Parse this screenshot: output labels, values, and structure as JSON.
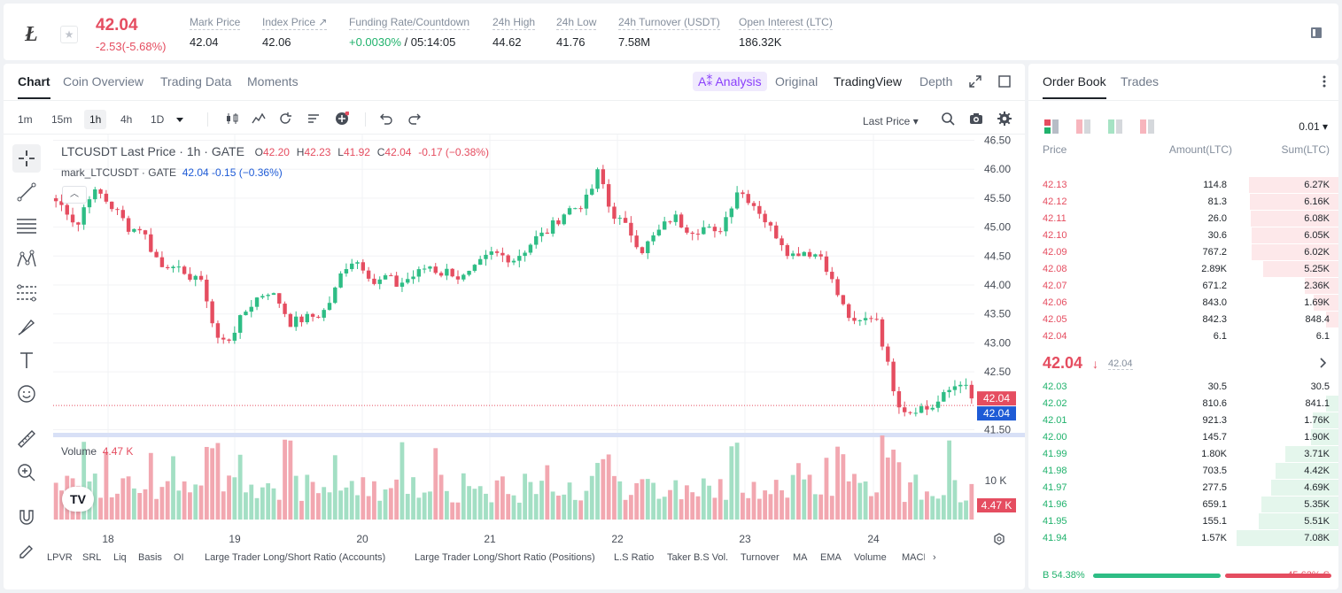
{
  "ticker": {
    "last_price": "42.04",
    "change": "-2.53(-5.68%)",
    "stats": [
      {
        "label": "Mark Price",
        "value": "42.04"
      },
      {
        "label": "Index Price ↗",
        "value": "42.06"
      },
      {
        "label": "Funding Rate/Countdown",
        "value_green": "+0.0030%",
        "value_rest": " / 05:14:05"
      },
      {
        "label": "24h High",
        "value": "44.62"
      },
      {
        "label": "24h Low",
        "value": "41.76"
      },
      {
        "label": "24h Turnover (USDT)",
        "value": "7.58M"
      },
      {
        "label": "Open Interest (LTC)",
        "value": "186.32K"
      }
    ]
  },
  "chart_tabs": [
    "Chart",
    "Coin Overview",
    "Trading Data",
    "Moments"
  ],
  "view_tabs": {
    "analysis": "A⁑ Analysis",
    "original": "Original",
    "tradingview": "TradingView",
    "depth": "Depth"
  },
  "timeframes": [
    "1m",
    "15m",
    "1h",
    "4h",
    "1D"
  ],
  "price_type": "Last Price ▾",
  "legend": {
    "symbol": "LTCUSDT Last Price · 1h · GATE",
    "o_label": "O",
    "o": "42.20",
    "h_label": "H",
    "h": "42.23",
    "l_label": "L",
    "l": "41.92",
    "c_label": "C",
    "c": "42.04",
    "chg": "-0.17 (−0.38%)",
    "mark": "mark_LTCUSDT · GATE",
    "mark_val": "42.04 -0.15 (−0.36%)"
  },
  "volume_legend": {
    "label": "Volume",
    "value": "4.47 K"
  },
  "bottom_indicators": [
    "LPVR",
    "SRL",
    "Liq",
    "Basis",
    "OI",
    "Large Trader Long/Short Ratio (Accounts)",
    "Large Trader Long/Short Ratio (Positions)",
    "L.S Ratio",
    "Taker B.S Vol.",
    "Turnover",
    "MA",
    "EMA",
    "Volume",
    "MACD"
  ],
  "chart_data": {
    "type": "candlestick",
    "price_ticks": [
      "46.50",
      "46.00",
      "45.50",
      "45.00",
      "44.50",
      "44.00",
      "43.50",
      "43.00",
      "42.50",
      "41.50"
    ],
    "price_range": [
      41.4,
      46.6
    ],
    "x_labels": [
      "18",
      "19",
      "20",
      "21",
      "22",
      "23",
      "24"
    ],
    "current_price_label": "42.04",
    "mark_price_label": "42.04",
    "volume_tick": "10 K",
    "volume_label": "4.47 K",
    "close_path": [
      45.45,
      45.3,
      45.0,
      45.55,
      45.6,
      45.4,
      45.2,
      44.95,
      45.0,
      44.6,
      44.3,
      44.4,
      44.1,
      44.2,
      43.9,
      43.1,
      43.0,
      43.3,
      43.6,
      43.8,
      43.9,
      43.7,
      43.35,
      43.4,
      43.45,
      43.5,
      43.8,
      44.3,
      44.45,
      44.3,
      44.0,
      44.15,
      44.0,
      44.1,
      44.2,
      44.35,
      44.2,
      44.25,
      44.1,
      44.2,
      44.4,
      44.55,
      44.5,
      44.45,
      44.6,
      44.8,
      44.9,
      45.1,
      45.3,
      45.35,
      45.5,
      46.0,
      45.3,
      45.1,
      44.9,
      44.6,
      44.8,
      45.0,
      45.2,
      45.0,
      44.95,
      45.0,
      44.85,
      45.2,
      45.65,
      45.5,
      45.3,
      45.0,
      44.8,
      44.5,
      44.6,
      44.55,
      44.5,
      44.0,
      43.6,
      43.3,
      43.4,
      43.5,
      42.7,
      42.0,
      41.8,
      41.9,
      41.85,
      42.0,
      42.2,
      42.35,
      42.04
    ]
  },
  "orderbook": {
    "tabs": [
      "Order Book",
      "Trades"
    ],
    "precision": "0.01 ▾",
    "headers": {
      "price": "Price",
      "amount": "Amount(LTC)",
      "sum": "Sum(LTC)"
    },
    "asks": [
      {
        "p": "42.13",
        "a": "114.8",
        "s": "6.27K",
        "w": 0.88
      },
      {
        "p": "42.12",
        "a": "81.3",
        "s": "6.16K",
        "w": 0.87
      },
      {
        "p": "42.11",
        "a": "26.0",
        "s": "6.08K",
        "w": 0.86
      },
      {
        "p": "42.10",
        "a": "30.6",
        "s": "6.05K",
        "w": 0.855
      },
      {
        "p": "42.09",
        "a": "767.2",
        "s": "6.02K",
        "w": 0.85
      },
      {
        "p": "42.08",
        "a": "2.89K",
        "s": "5.25K",
        "w": 0.74
      },
      {
        "p": "42.07",
        "a": "671.2",
        "s": "2.36K",
        "w": 0.33
      },
      {
        "p": "42.06",
        "a": "843.0",
        "s": "1.69K",
        "w": 0.24
      },
      {
        "p": "42.05",
        "a": "842.3",
        "s": "848.4",
        "w": 0.12
      },
      {
        "p": "42.04",
        "a": "6.1",
        "s": "6.1",
        "w": 0.0
      }
    ],
    "mid": {
      "price": "42.04",
      "arrow": "↓",
      "mark": "42.04"
    },
    "bids": [
      {
        "p": "42.03",
        "a": "30.5",
        "s": "30.5",
        "w": 0.0
      },
      {
        "p": "42.02",
        "a": "810.6",
        "s": "841.1",
        "w": 0.12
      },
      {
        "p": "42.01",
        "a": "921.3",
        "s": "1.76K",
        "w": 0.25
      },
      {
        "p": "42.00",
        "a": "145.7",
        "s": "1.90K",
        "w": 0.27
      },
      {
        "p": "41.99",
        "a": "1.80K",
        "s": "3.71K",
        "w": 0.52
      },
      {
        "p": "41.98",
        "a": "703.5",
        "s": "4.42K",
        "w": 0.62
      },
      {
        "p": "41.97",
        "a": "277.5",
        "s": "4.69K",
        "w": 0.66
      },
      {
        "p": "41.96",
        "a": "659.1",
        "s": "5.35K",
        "w": 0.76
      },
      {
        "p": "41.95",
        "a": "155.1",
        "s": "5.51K",
        "w": 0.78
      },
      {
        "p": "41.94",
        "a": "1.57K",
        "s": "7.08K",
        "w": 1.0
      }
    ],
    "buy_ratio": "B 54.38%",
    "sell_ratio": "45.62% S",
    "buy_frac": 0.5438
  }
}
